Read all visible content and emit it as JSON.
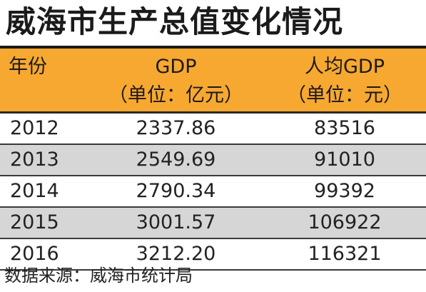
{
  "title": "威海市生产总值变化情况",
  "table": {
    "headers": {
      "year": "年份",
      "gdp": "GDP",
      "gdp_unit": "（单位：亿元）",
      "per_capita": "人均GDP",
      "per_capita_unit": "（单位：元）"
    },
    "rows": [
      {
        "year": "2012",
        "gdp": "2337.86",
        "per_capita": "83516"
      },
      {
        "year": "2013",
        "gdp": "2549.69",
        "per_capita": "91010"
      },
      {
        "year": "2014",
        "gdp": "2790.34",
        "per_capita": "99392"
      },
      {
        "year": "2015",
        "gdp": "3001.57",
        "per_capita": "106922"
      },
      {
        "year": "2016",
        "gdp": "3212.20",
        "per_capita": "116321"
      }
    ]
  },
  "source": "数据来源：威海市统计局",
  "colors": {
    "header_bg": "#f7a830",
    "shaded_row": "#d6d6d6",
    "rule": "#1a1a1a"
  }
}
